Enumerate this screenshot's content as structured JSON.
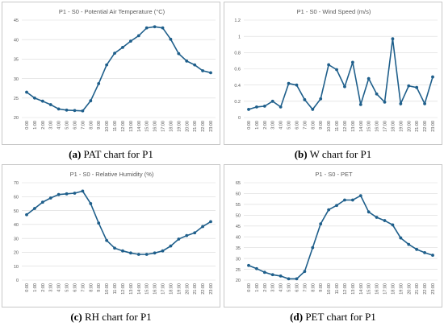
{
  "chart_data": [
    {
      "type": "line",
      "title": "P1 - S0 - Potential Air Temperature (°C)",
      "categories": [
        "0:00",
        "1:00",
        "2:00",
        "3:00",
        "4:00",
        "5:00",
        "6:00",
        "7:00",
        "8:00",
        "9:00",
        "10:00",
        "11:00",
        "12:00",
        "13:00",
        "14:00",
        "15:00",
        "16:00",
        "17:00",
        "18:00",
        "19:00",
        "20:00",
        "21:00",
        "22:00",
        "23:00"
      ],
      "values": [
        26.5,
        25.0,
        24.2,
        23.3,
        22.2,
        21.9,
        21.8,
        21.7,
        24.3,
        28.7,
        33.5,
        36.5,
        38.0,
        39.6,
        41.0,
        43.0,
        43.3,
        43.0,
        40.1,
        36.4,
        34.5,
        33.5,
        32.0,
        31.5
      ],
      "ylim": [
        20,
        45
      ],
      "yticks": [
        20,
        25,
        30,
        35,
        40,
        45
      ],
      "grid": true,
      "line_color": "#1f5f8b",
      "caption_letter": "(a)",
      "caption_text": " PAT chart for P1"
    },
    {
      "type": "line",
      "title": "P1 - S0 - Wind Speed  (m/s)",
      "categories": [
        "0:00",
        "1:00",
        "2:00",
        "3:00",
        "4:00",
        "5:00",
        "6:00",
        "7:00",
        "8:00",
        "9:00",
        "10:00",
        "11:00",
        "12:00",
        "13:00",
        "14:00",
        "15:00",
        "16:00",
        "17:00",
        "18:00",
        "19:00",
        "20:00",
        "21:00",
        "22:00",
        "23:00"
      ],
      "values": [
        0.1,
        0.13,
        0.14,
        0.2,
        0.13,
        0.42,
        0.4,
        0.22,
        0.1,
        0.23,
        0.65,
        0.59,
        0.38,
        0.68,
        0.16,
        0.48,
        0.29,
        0.19,
        0.97,
        0.17,
        0.39,
        0.37,
        0.17,
        0.5
      ],
      "ylim": [
        0,
        1.2
      ],
      "yticks": [
        0,
        0.2,
        0.4,
        0.6,
        0.8,
        1,
        1.2
      ],
      "grid": true,
      "line_color": "#1f5f8b",
      "caption_letter": "(b)",
      "caption_text": " W chart for P1"
    },
    {
      "type": "line",
      "title": "P1 - S0 - Relative Humidity (%)",
      "categories": [
        "0:00",
        "1:00",
        "2:00",
        "3:00",
        "4:00",
        "5:00",
        "6:00",
        "7:00",
        "8:00",
        "9:00",
        "10:00",
        "11:00",
        "12:00",
        "13:00",
        "14:00",
        "15:00",
        "16:00",
        "17:00",
        "18:00",
        "19:00",
        "20:00",
        "21:00",
        "22:00",
        "23:00"
      ],
      "values": [
        47.0,
        51.5,
        56.0,
        59.0,
        61.5,
        62.0,
        62.5,
        64.0,
        55.0,
        41.0,
        28.5,
        23.0,
        21.0,
        19.5,
        18.5,
        18.5,
        19.5,
        21.0,
        24.5,
        29.5,
        32.0,
        34.0,
        38.5,
        42.0
      ],
      "ylim": [
        0,
        70
      ],
      "yticks": [
        0,
        10,
        20,
        30,
        40,
        50,
        60,
        70
      ],
      "grid": true,
      "line_color": "#1f5f8b",
      "caption_letter": "(c)",
      "caption_text": " RH chart for P1"
    },
    {
      "type": "line",
      "title": "P1 - S0 - PET",
      "categories": [
        "0:00",
        "1:00",
        "2:00",
        "3:00",
        "4:00",
        "5:00",
        "6:00",
        "7:00",
        "8:00",
        "9:00",
        "10:00",
        "11:00",
        "12:00",
        "13:00",
        "14:00",
        "15:00",
        "16:00",
        "17:00",
        "18:00",
        "19:00",
        "20:00",
        "21:00",
        "22:00",
        "23:00"
      ],
      "values": [
        26.8,
        25.3,
        23.6,
        22.5,
        21.9,
        20.6,
        20.6,
        24.0,
        35.0,
        46.0,
        52.5,
        54.5,
        57.0,
        57.0,
        59.0,
        51.5,
        49.0,
        47.5,
        45.5,
        39.5,
        36.5,
        34.2,
        32.7,
        31.5
      ],
      "ylim": [
        20,
        65
      ],
      "yticks": [
        20,
        25,
        30,
        35,
        40,
        45,
        50,
        55,
        60,
        65
      ],
      "grid": true,
      "line_color": "#1f5f8b",
      "caption_letter": "(d)",
      "caption_text": " PET chart for P1"
    }
  ]
}
